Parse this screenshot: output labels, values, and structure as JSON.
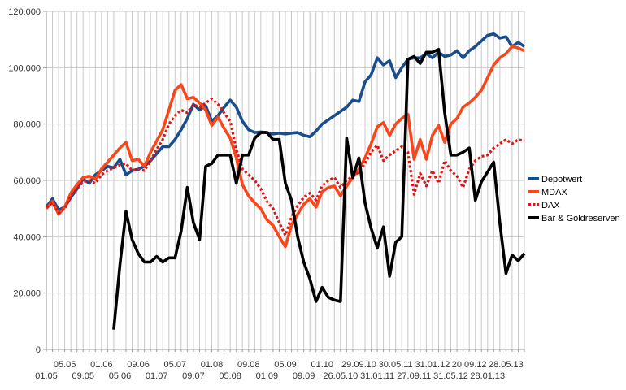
{
  "chart_data": {
    "type": "line",
    "title": "",
    "xlabel": "",
    "ylabel": "",
    "grid": true,
    "background_color": "#ffffff",
    "grid_color": "#c9c9c9",
    "axis_color": "#999999",
    "text_color": "#333333",
    "y_axis": {
      "min": 0,
      "max": 120000,
      "tick_interval": 20000,
      "tick_labels": [
        "0",
        "20.000",
        "40.000",
        "60.000",
        "80.000",
        "100.000",
        "120.000"
      ]
    },
    "x_axis": {
      "label_every_n_points": 3,
      "points_count": 79,
      "tick_labels": [
        "01.05",
        "05.05",
        "09.05",
        "01.06",
        "05.06",
        "09.06",
        "01.07",
        "05.07",
        "09.07",
        "01.08",
        "05.08",
        "09.08",
        "01.09",
        "05.09",
        "09.09",
        "01.10",
        "26.05.10",
        "29.09.10",
        "31.01.11",
        "30.05.11",
        "27.09.11",
        "31.01.12",
        "31.05.12",
        "20.09.12",
        "28.01.13",
        "28.05.13"
      ],
      "stagger_rows": true
    },
    "legend": {
      "position": "right",
      "entries": [
        "Depotwert",
        "MDAX",
        "DAX",
        "Bar & Goldreserven"
      ]
    },
    "series": [
      {
        "name": "Depotwert",
        "color": "#194D8C",
        "style": "solid",
        "values": [
          50500,
          53500,
          49500,
          50500,
          54000,
          57000,
          60500,
          59000,
          62000,
          63500,
          65000,
          64500,
          67500,
          62000,
          63500,
          64000,
          65000,
          67000,
          69500,
          72000,
          72000,
          74500,
          78000,
          82000,
          87000,
          85000,
          86500,
          81000,
          83000,
          86000,
          88500,
          86000,
          81000,
          78000,
          77000,
          77200,
          77000,
          76500,
          76800,
          76500,
          76800,
          77000,
          76000,
          75500,
          77500,
          80000,
          81500,
          83000,
          84500,
          86000,
          88500,
          88000,
          95000,
          97500,
          103500,
          101000,
          102500,
          96500,
          100000,
          103000,
          103500,
          103500,
          105000,
          103500,
          105500,
          104000,
          104500,
          106000,
          103500,
          106000,
          107500,
          109500,
          111500,
          112000,
          110500,
          111000,
          107500,
          109000,
          107500
        ]
      },
      {
        "name": "MDAX",
        "color": "#FA4619",
        "style": "solid",
        "values": [
          50000,
          52500,
          48000,
          50500,
          55500,
          58500,
          61000,
          61500,
          60500,
          64000,
          66500,
          69000,
          71500,
          73500,
          67000,
          67500,
          65000,
          70000,
          74000,
          78000,
          85000,
          92000,
          94000,
          89000,
          89500,
          87500,
          85000,
          79500,
          82500,
          78500,
          75000,
          68000,
          58500,
          54500,
          52000,
          50000,
          46000,
          44000,
          40000,
          36500,
          44000,
          48000,
          51500,
          53500,
          50500,
          56000,
          57500,
          58000,
          54500,
          58000,
          61000,
          64000,
          68000,
          73000,
          79000,
          80500,
          76000,
          80000,
          82000,
          83500,
          67500,
          74500,
          67500,
          76000,
          79500,
          73500,
          80000,
          82000,
          86000,
          87500,
          89500,
          92000,
          96500,
          101000,
          103500,
          105000,
          107500,
          107000,
          106000
        ]
      },
      {
        "name": "DAX",
        "color": "#E11414",
        "style": "dotted",
        "values": [
          50500,
          52000,
          48500,
          50000,
          54500,
          57000,
          59500,
          60000,
          59000,
          62000,
          63500,
          64500,
          65500,
          66000,
          63500,
          64000,
          63500,
          67000,
          71000,
          74500,
          80000,
          83000,
          85000,
          84000,
          87000,
          86000,
          87500,
          89000,
          87000,
          84000,
          81000,
          71000,
          64000,
          62000,
          60000,
          57000,
          52500,
          50000,
          45000,
          40500,
          47000,
          51000,
          54000,
          55500,
          53000,
          58000,
          60000,
          61000,
          57500,
          60000,
          61500,
          63000,
          66000,
          70000,
          72500,
          67000,
          69000,
          70500,
          72000,
          70000,
          55000,
          62500,
          58000,
          63500,
          59000,
          67000,
          63500,
          61500,
          57500,
          64000,
          67000,
          68500,
          69000,
          71500,
          73000,
          74500,
          73000,
          74500,
          74000
        ]
      },
      {
        "name": "Bar & Goldreserven",
        "color": "#000000",
        "style": "solid",
        "values": [
          null,
          null,
          null,
          null,
          null,
          null,
          null,
          null,
          null,
          null,
          null,
          7000,
          30000,
          49000,
          39000,
          34000,
          31000,
          31000,
          33000,
          31000,
          32500,
          32500,
          42000,
          57500,
          45000,
          39000,
          65000,
          66000,
          69000,
          69000,
          69000,
          59000,
          69000,
          69000,
          75000,
          77000,
          77000,
          74500,
          74500,
          59000,
          53000,
          40000,
          31000,
          25000,
          17000,
          22000,
          18500,
          17500,
          17000,
          75000,
          61000,
          68000,
          52000,
          43000,
          36000,
          43500,
          26000,
          38000,
          40000,
          103000,
          104000,
          101500,
          105500,
          105500,
          106500,
          84000,
          69000,
          69000,
          70000,
          71500,
          53000,
          59500,
          63000,
          66500,
          45000,
          27000,
          33500,
          31500,
          34000
        ]
      }
    ]
  }
}
